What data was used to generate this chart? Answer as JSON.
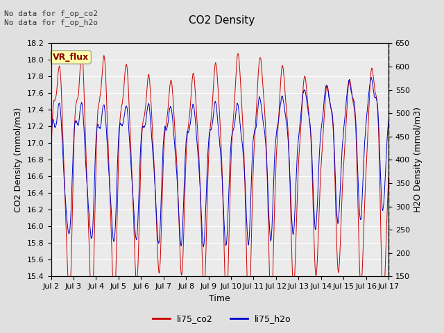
{
  "title": "CO2 Density",
  "xlabel": "Time",
  "ylabel_left": "CO2 Density (mmol/m3)",
  "ylabel_right": "H2O Density (mmol/m3)",
  "ylim_left": [
    15.4,
    18.2
  ],
  "ylim_right": [
    150,
    650
  ],
  "xtick_labels": [
    "Jul 2",
    "Jul 3",
    "Jul 4",
    "Jul 5",
    "Jul 6",
    "Jul 7",
    "Jul 8",
    "Jul 9",
    "Jul 10",
    "Jul 11",
    "Jul 12",
    "Jul 13",
    "Jul 14",
    "Jul 15",
    "Jul 16",
    "Jul 17"
  ],
  "annotation_text": "No data for f_op_co2\nNo data for f_op_h2o",
  "legend_label1": "li75_co2",
  "legend_label2": "li75_h2o",
  "legend_box_label": "VR_flux",
  "color_co2": "#CC0000",
  "color_h2o": "#0000CC",
  "color_legend_box_bg": "#FFFFAA",
  "color_legend_box_text": "#880000",
  "background_color": "#E0E0E0",
  "plot_bg_color": "#EBEBEB",
  "grid_color": "#FFFFFF",
  "title_fontsize": 11,
  "axis_label_fontsize": 9,
  "tick_fontsize": 8,
  "annotation_fontsize": 8,
  "n_points": 1500,
  "time_days": 15
}
